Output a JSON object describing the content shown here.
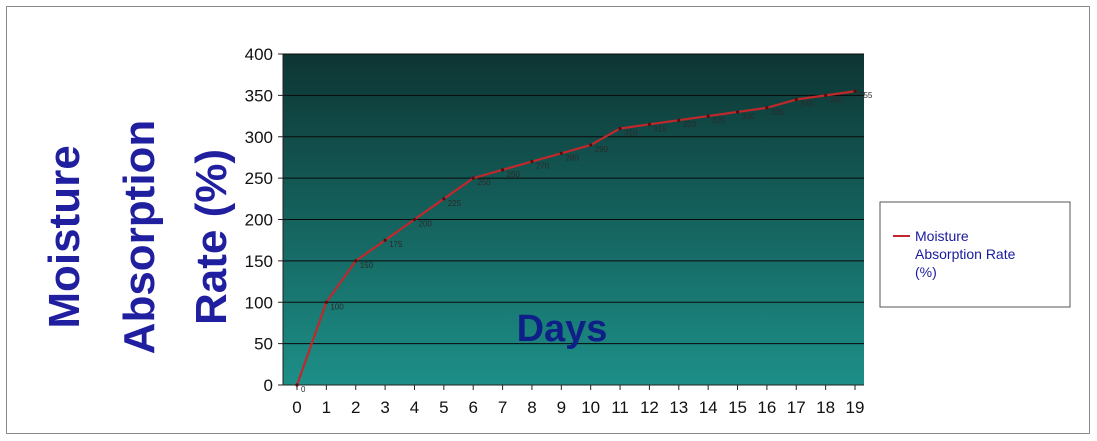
{
  "chart_data": {
    "type": "line",
    "title": "",
    "xlabel": "Days",
    "ylabel_lines": [
      "Moisture",
      "Absorption",
      "Rate (%)"
    ],
    "x": [
      0,
      1,
      2,
      3,
      4,
      5,
      6,
      7,
      8,
      9,
      10,
      11,
      12,
      13,
      14,
      15,
      16,
      17,
      18,
      19
    ],
    "xlim": [
      0,
      19
    ],
    "ylim": [
      0,
      400
    ],
    "yticks": [
      0,
      50,
      100,
      150,
      200,
      250,
      300,
      350,
      400
    ],
    "grid": true,
    "legend_position": "right",
    "series": [
      {
        "name": "Moisture Absorption Rate (%)",
        "color": "#c0282c",
        "values": [
          0,
          100,
          150,
          175,
          200,
          225,
          250,
          260,
          270,
          280,
          290,
          310,
          315,
          320,
          325,
          330,
          335,
          345,
          350,
          355
        ]
      }
    ],
    "colors": {
      "plot_top": "#0d3533",
      "plot_bottom": "#1d8f88",
      "gridline": "#0a0a0a",
      "axis_title": "#1f1fa0",
      "xlabel_text": "#0f1f88",
      "legend_text": "#1a1aa0"
    }
  }
}
